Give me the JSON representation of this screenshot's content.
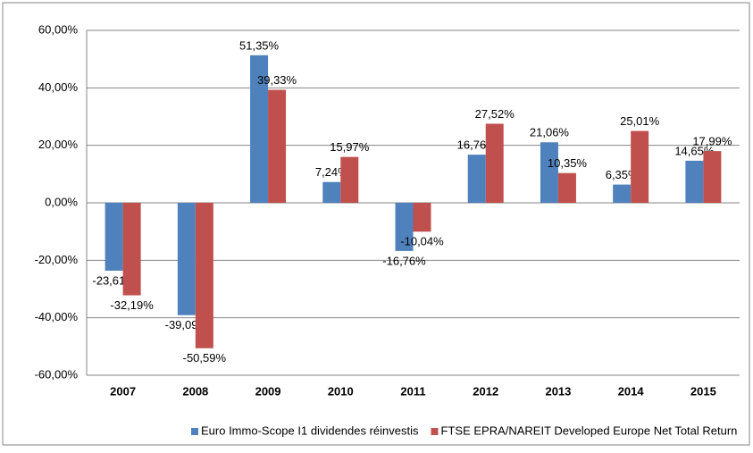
{
  "chart_data": {
    "type": "bar",
    "categories": [
      "2007",
      "2008",
      "2009",
      "2010",
      "2011",
      "2012",
      "2013",
      "2014",
      "2015"
    ],
    "series": [
      {
        "name": "Euro Immo-Scope I1 dividendes réinvestis",
        "color": "#4f81bd",
        "values": [
          -23.61,
          -39.09,
          51.35,
          7.24,
          -16.76,
          16.76,
          21.06,
          6.35,
          14.65
        ],
        "value_labels": [
          "-23,61%",
          "-39,09%",
          "51,35%",
          "7,24%",
          "-16,76%",
          "16,76%",
          "21,06%",
          "6,35%",
          "14,65%"
        ]
      },
      {
        "name": "FTSE EPRA/NAREIT Developed Europe Net Total Return",
        "color": "#c0504d",
        "values": [
          -32.19,
          -50.59,
          39.33,
          15.97,
          -10.04,
          27.52,
          10.35,
          25.01,
          17.99
        ],
        "value_labels": [
          "-32,19%",
          "-50,59%",
          "39,33%",
          "15,97%",
          "-10,04%",
          "27,52%",
          "10,35%",
          "25,01%",
          "17,99%"
        ]
      }
    ],
    "ylim": [
      -60,
      60
    ],
    "yticks": [
      {
        "value": -60,
        "label": "-60,00%"
      },
      {
        "value": -40,
        "label": "-40,00%"
      },
      {
        "value": -20,
        "label": "-20,00%"
      },
      {
        "value": 0,
        "label": "0,00%"
      },
      {
        "value": 20,
        "label": "20,00%"
      },
      {
        "value": 40,
        "label": "40,00%"
      },
      {
        "value": 60,
        "label": "60,00%"
      }
    ],
    "grid": true,
    "legend": "bottom"
  }
}
